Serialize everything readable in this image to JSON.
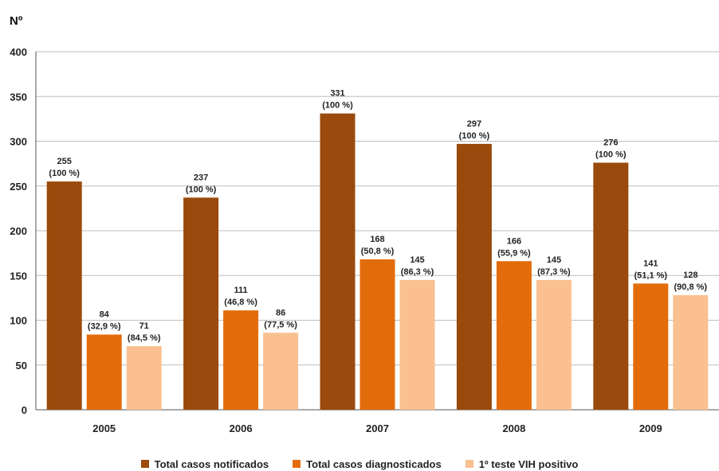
{
  "chart_data": {
    "type": "bar",
    "y_axis_symbol": "Nº",
    "categories": [
      "2005",
      "2006",
      "2007",
      "2008",
      "2009"
    ],
    "ylim": [
      0,
      400
    ],
    "yticks": [
      0,
      50,
      100,
      150,
      200,
      250,
      300,
      350,
      400
    ],
    "grid": true,
    "legend_position": "bottom",
    "series": [
      {
        "name": "Total casos notificados",
        "color": "#9A4A0C",
        "values": [
          255,
          237,
          331,
          297,
          276
        ],
        "percent_labels": [
          "(100 %)",
          "(100 %)",
          "(100 %)",
          "(100 %)",
          "(100 %)"
        ]
      },
      {
        "name": "Total casos diagnosticados",
        "color": "#E36C0A",
        "values": [
          84,
          111,
          168,
          166,
          141
        ],
        "percent_labels": [
          "(32,9 %)",
          "(46,8 %)",
          "(50,8 %)",
          "(55,9 %)",
          "(51,1 %)"
        ]
      },
      {
        "name": "1º teste VIH positivo",
        "color": "#FAC090",
        "values": [
          71,
          86,
          145,
          145,
          128
        ],
        "percent_labels": [
          "(84,5 %)",
          "(77,5 %)",
          "(86,3 %)",
          "(87,3 %)",
          "(90,8 %)"
        ]
      }
    ]
  }
}
